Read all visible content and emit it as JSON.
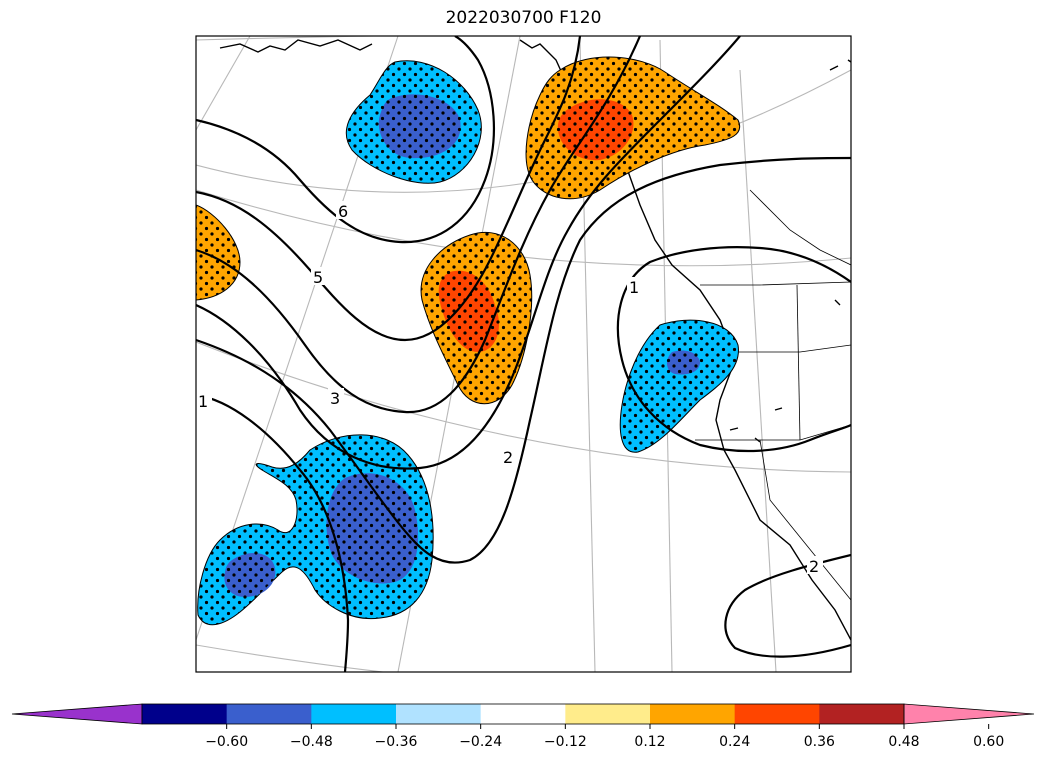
{
  "title": "2022030700 F120",
  "contour_labels": [
    "6",
    "5",
    "3",
    "1",
    "2",
    "1",
    "2"
  ],
  "colorbar": {
    "colors": [
      "#9932cc",
      "#00008b",
      "#3a5fcd",
      "#00bfff",
      "#b0e2ff",
      "#ffffff",
      "#ffec8b",
      "#ffa500",
      "#ff4500",
      "#b22222",
      "#ff82ab"
    ],
    "ticks": [
      "−0.60",
      "−0.48",
      "−0.36",
      "−0.24",
      "−0.12",
      "0.12",
      "0.24",
      "0.36",
      "0.48",
      "0.60"
    ]
  },
  "fill_colors": {
    "neg_strong": "#3a5fcd",
    "neg_medium": "#00bfff",
    "pos_medium": "#ffa500",
    "pos_strong": "#ff4500"
  },
  "stippling": true
}
